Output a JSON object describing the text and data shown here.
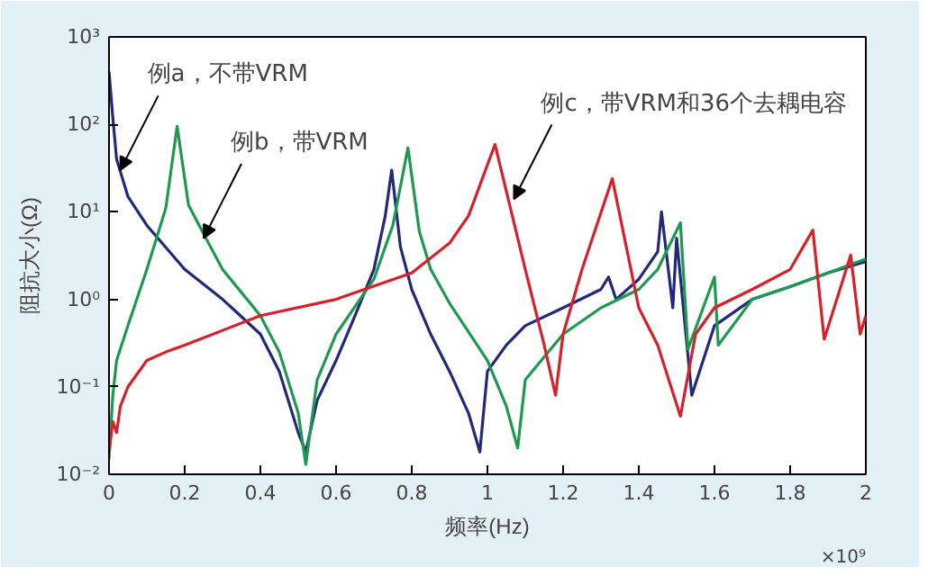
{
  "chart_data": {
    "type": "line",
    "xlabel": "频率(Hz)",
    "ylabel": "阻抗大小(Ω)",
    "log": "y",
    "grid": false,
    "marker": "none",
    "line_style": "solid",
    "xlim": [
      0,
      2
    ],
    "xticks": [
      0,
      0.2,
      0.4,
      0.6,
      0.8,
      1,
      1.2,
      1.4,
      1.6,
      1.8,
      2
    ],
    "ylim": [
      0.01,
      1000
    ],
    "yticks": [
      {
        "value": 0.01,
        "label": "10⁻²"
      },
      {
        "value": 0.1,
        "label": "10⁻¹"
      },
      {
        "value": 1,
        "label": "10⁰"
      },
      {
        "value": 10,
        "label": "10¹"
      },
      {
        "value": 100,
        "label": "10²"
      },
      {
        "value": 1000,
        "label": "10³"
      }
    ],
    "series": [
      {
        "color": "#22287a",
        "x": [
          0,
          0.01,
          0.02,
          0.05,
          0.1,
          0.2,
          0.3,
          0.4,
          0.45,
          0.5,
          0.52,
          0.55,
          0.6,
          0.65,
          0.7,
          0.73,
          0.747,
          0.77,
          0.8,
          0.85,
          0.9,
          0.95,
          0.98,
          1.0,
          1.05,
          1.1,
          1.2,
          1.3,
          1.32,
          1.34,
          1.4,
          1.45,
          1.46,
          1.49,
          1.5,
          1.54,
          1.6,
          1.7,
          1.8,
          1.9,
          2.0
        ],
        "values": [
          400,
          120,
          40,
          15,
          7,
          2.2,
          1,
          0.4,
          0.15,
          0.03,
          0.018,
          0.07,
          0.2,
          0.65,
          2.2,
          9,
          30,
          4,
          1.3,
          0.4,
          0.15,
          0.05,
          0.018,
          0.15,
          0.3,
          0.5,
          0.8,
          1.3,
          1.8,
          1.0,
          1.7,
          3.5,
          10,
          0.8,
          5,
          0.08,
          0.5,
          1.0,
          1.4,
          2.0,
          2.7
        ]
      },
      {
        "color": "#1e9a50",
        "x": [
          0,
          0.01,
          0.02,
          0.05,
          0.1,
          0.15,
          0.18,
          0.21,
          0.25,
          0.3,
          0.4,
          0.45,
          0.5,
          0.52,
          0.55,
          0.6,
          0.7,
          0.75,
          0.79,
          0.82,
          0.85,
          0.9,
          1.0,
          1.05,
          1.08,
          1.1,
          1.2,
          1.3,
          1.4,
          1.45,
          1.51,
          1.53,
          1.6,
          1.61,
          1.7,
          1.8,
          1.9,
          2.0
        ],
        "values": [
          0.015,
          0.08,
          0.2,
          0.5,
          2.2,
          11,
          95,
          12,
          5.6,
          2.2,
          0.65,
          0.25,
          0.05,
          0.013,
          0.12,
          0.4,
          1.7,
          7,
          54,
          6,
          2.2,
          0.9,
          0.2,
          0.06,
          0.02,
          0.12,
          0.4,
          0.8,
          1.3,
          2.2,
          7.5,
          0.27,
          1.8,
          0.3,
          1.0,
          1.4,
          2.0,
          2.9
        ]
      },
      {
        "color": "#d8202a",
        "x": [
          0,
          0.01,
          0.02,
          0.03,
          0.05,
          0.1,
          0.15,
          0.2,
          0.4,
          0.6,
          0.8,
          0.9,
          0.95,
          1.02,
          1.1,
          1.15,
          1.18,
          1.2,
          1.25,
          1.33,
          1.4,
          1.45,
          1.51,
          1.55,
          1.6,
          1.7,
          1.8,
          1.86,
          1.89,
          1.96,
          1.985,
          2.0
        ],
        "values": [
          0.018,
          0.04,
          0.03,
          0.06,
          0.1,
          0.2,
          0.25,
          0.3,
          0.65,
          1,
          2,
          4.4,
          9,
          59,
          2.2,
          0.3,
          0.08,
          0.4,
          2.2,
          24,
          0.8,
          0.3,
          0.046,
          0.4,
          0.8,
          1.3,
          2.2,
          6.2,
          0.35,
          3.2,
          0.4,
          0.65
        ]
      }
    ],
    "annotations": [
      {
        "text": "例a，不带VRM",
        "x": 0.03,
        "y": 30
      },
      {
        "text": "例b，带VRM",
        "x": 0.25,
        "y": 5
      },
      {
        "text": "例c，带VRM和36个去耦电容",
        "x": 1.07,
        "y": 14
      },
      "×10⁹"
    ]
  }
}
